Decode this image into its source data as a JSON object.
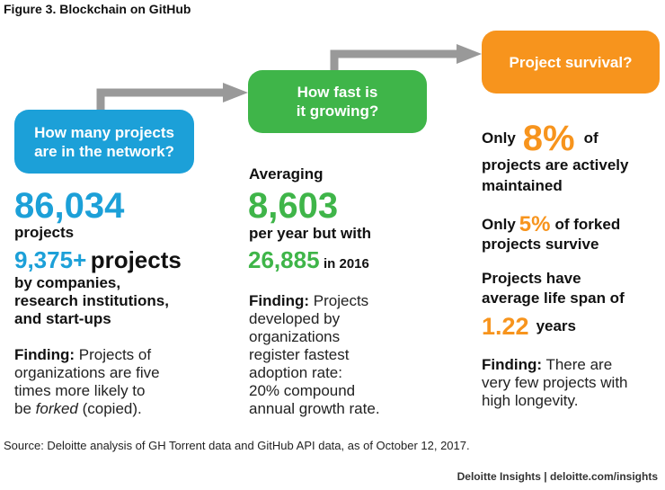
{
  "figure_title": "Figure 3. Blockchain on GitHub",
  "stages": {
    "network": {
      "bubble_line1": "How many projects",
      "bubble_line2": "are in the network?",
      "total_projects": "86,034",
      "total_projects_label": "projects",
      "org_projects_value": "9,375+",
      "org_projects_label": "projects",
      "org_line1": "by companies,",
      "org_line2": "research institutions,",
      "org_line3": "and start-ups",
      "finding_label": "Finding:",
      "finding_line1": " Projects of",
      "finding_line2": "organizations are five",
      "finding_line3": "times more likely to",
      "finding_line4_pre": "be ",
      "finding_line4_em": "forked",
      "finding_line4_post": " (copied)."
    },
    "growth": {
      "bubble_line1": "How fast is",
      "bubble_line2": "it growing?",
      "averaging_label": "Averaging",
      "per_year_value": "8,603",
      "per_year_label": "per year but with",
      "year_value": "26,885",
      "year_label": "in 2016",
      "finding_label": "Finding:",
      "finding_line1": " Projects",
      "finding_line2": "developed by",
      "finding_line3": "organizations",
      "finding_line4": "register fastest",
      "finding_line5": "adoption rate:",
      "finding_line6": "20% compound",
      "finding_line7": "annual growth rate."
    },
    "survival": {
      "bubble_text": "Project survival?",
      "maint_pre": "Only",
      "maint_value": "8%",
      "maint_post": "of",
      "maint_line2": "projects are actively",
      "maint_line3": "maintained",
      "forked_pre": "Only",
      "forked_value": "5%",
      "forked_post": "of forked",
      "forked_line2": "projects survive",
      "life_line1": "Projects have",
      "life_line2": "average life span of",
      "life_value": "1.22",
      "life_unit": "years",
      "finding_label": "Finding:",
      "finding_line1": " There are",
      "finding_line2": "very few projects with",
      "finding_line3": "high longevity."
    }
  },
  "source": "Source: Deloitte analysis of GH Torrent data and GitHub API data, as of October 12, 2017.",
  "credit": "Deloitte Insights | deloitte.com/insights",
  "colors": {
    "blue": "#1ca0d8",
    "green": "#3fb549",
    "orange": "#f7941d",
    "connector": "#999999"
  }
}
